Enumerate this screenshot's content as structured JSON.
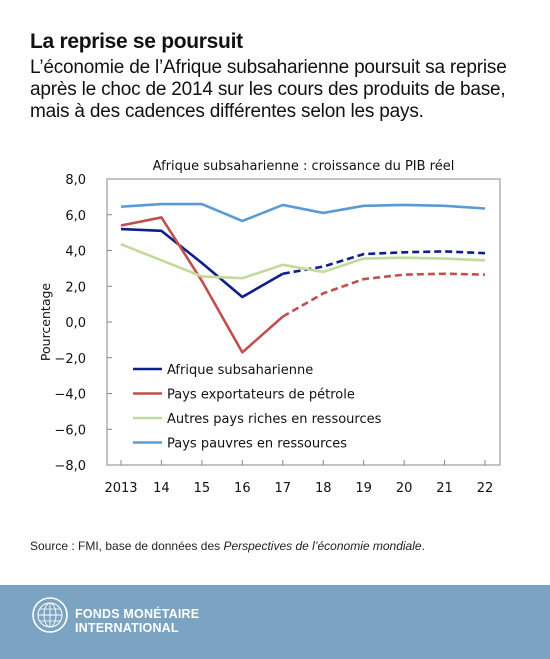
{
  "header": {
    "title": "La reprise se poursuit",
    "subtitle": "L’économie de l’Afrique subsaharienne poursuit sa reprise après le choc de 2014 sur les cours des produits de base, mais à des cadences différentes selon les pays."
  },
  "chart_data": {
    "type": "line",
    "title": "Afrique subsaharienne : croissance du PIB réel",
    "ylabel": "Pourcentage",
    "xlabel": "",
    "categories": [
      "2013",
      "14",
      "15",
      "16",
      "17",
      "18",
      "19",
      "20",
      "21",
      "22"
    ],
    "yticks": [
      "8,0",
      "6,0",
      "4,0",
      "2,0",
      "0,0",
      "−2,0",
      "−4,0",
      "−6,0",
      "−8,0"
    ],
    "ylim": [
      -8,
      8
    ],
    "grid": false,
    "legend_position": "lower-left",
    "projection_note": "dashed segments from 2017",
    "series": [
      {
        "name": "Afrique subsaharienne",
        "color": "#0c1f8a",
        "values": [
          5.2,
          5.1,
          3.3,
          1.4,
          2.7,
          3.1,
          3.8,
          3.9,
          3.95,
          3.85
        ],
        "dashed_from_index": 4
      },
      {
        "name": "Pays exportateurs de pétrole",
        "color": "#c0504d",
        "values": [
          5.4,
          5.85,
          2.3,
          -1.7,
          0.3,
          1.6,
          2.4,
          2.65,
          2.7,
          2.65
        ],
        "dashed_from_index": 4
      },
      {
        "name": "Autres pays riches en ressources",
        "color": "#c3da9b",
        "values": [
          4.35,
          3.45,
          2.55,
          2.45,
          3.2,
          2.8,
          3.55,
          3.6,
          3.55,
          3.45
        ]
      },
      {
        "name": "Pays pauvres en ressources",
        "color": "#5b9bd5",
        "values": [
          6.45,
          6.6,
          6.6,
          5.65,
          6.55,
          6.1,
          6.5,
          6.55,
          6.5,
          6.35
        ]
      }
    ]
  },
  "source": {
    "prefix": "Source : FMI, base de données des ",
    "publication": "Perspectives de l’économie mondiale",
    "suffix": "."
  },
  "footer": {
    "org_line1": "FONDS MONÉTAIRE",
    "org_line2": "INTERNATIONAL",
    "background": "#7ba3c2",
    "logo_icon": "imf-seal-icon"
  }
}
